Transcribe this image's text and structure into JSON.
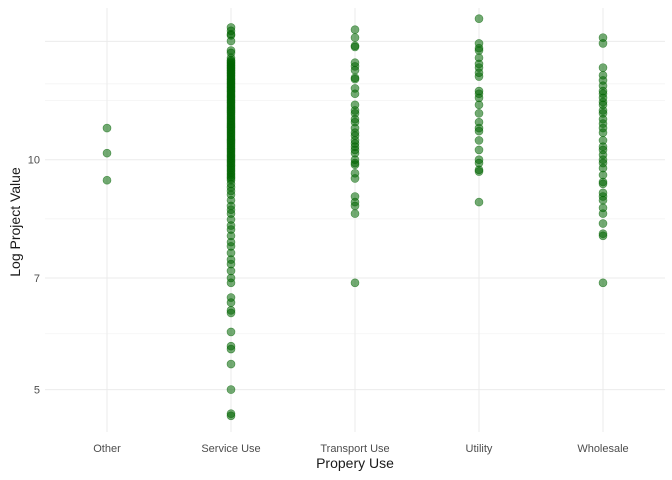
{
  "chart_data": {
    "type": "scatter",
    "title": "",
    "xlabel": "Propery Use",
    "ylabel": "Log Project Value",
    "categories": [
      "Other",
      "Service Use",
      "Transport Use",
      "Utility",
      "Wholesale"
    ],
    "yticks": [
      5,
      7,
      10
    ],
    "yticks_labels": [
      "5",
      "7",
      "10"
    ],
    "ylim": [
      4.4,
      15.8
    ],
    "grid": true,
    "point_color": "#006400",
    "point_opacity": 0.55,
    "series": [
      {
        "category": "Other",
        "values": [
          11.0,
          10.2,
          9.4
        ]
      },
      {
        "category": "Service Use",
        "values": [
          14.9,
          14.75,
          14.6,
          14.55,
          14.3,
          13.9,
          13.8,
          13.6,
          13.5,
          13.45,
          13.4,
          13.35,
          13.3,
          13.25,
          13.2,
          13.15,
          13.1,
          13.05,
          13.0,
          12.95,
          12.9,
          12.85,
          12.8,
          12.75,
          12.7,
          12.65,
          12.6,
          12.55,
          12.5,
          12.45,
          12.4,
          12.35,
          12.3,
          12.25,
          12.2,
          12.15,
          12.1,
          12.05,
          12.0,
          11.95,
          11.9,
          11.85,
          11.8,
          11.75,
          11.7,
          11.65,
          11.6,
          11.55,
          11.5,
          11.45,
          11.4,
          11.35,
          11.3,
          11.25,
          11.2,
          11.15,
          11.1,
          11.05,
          11.0,
          10.95,
          10.9,
          10.85,
          10.8,
          10.75,
          10.7,
          10.65,
          10.6,
          10.55,
          10.5,
          10.45,
          10.4,
          10.35,
          10.3,
          10.25,
          10.2,
          10.15,
          10.1,
          10.05,
          10.0,
          9.95,
          9.9,
          9.85,
          9.8,
          9.75,
          9.7,
          9.65,
          9.6,
          9.55,
          9.5,
          9.45,
          9.4,
          9.3,
          9.2,
          9.1,
          9.0,
          8.85,
          8.7,
          8.6,
          8.5,
          8.35,
          8.2,
          8.1,
          7.95,
          7.8,
          7.7,
          7.55,
          7.4,
          7.3,
          7.15,
          7.0,
          6.9,
          6.6,
          6.5,
          6.35,
          6.3,
          5.95,
          5.7,
          5.65,
          5.4,
          5.0,
          4.65,
          4.62
        ]
      },
      {
        "category": "Transport Use",
        "values": [
          14.8,
          14.45,
          14.1,
          14.05,
          13.4,
          13.25,
          13.1,
          12.8,
          12.75,
          12.4,
          12.2,
          11.8,
          11.6,
          11.5,
          11.3,
          11.2,
          11.0,
          10.85,
          10.75,
          10.6,
          10.5,
          10.4,
          10.3,
          10.2,
          10.0,
          9.9,
          9.85,
          9.6,
          9.45,
          8.95,
          8.8,
          8.7,
          8.5,
          6.9
        ]
      },
      {
        "category": "Utility",
        "values": [
          15.3,
          14.2,
          14.0,
          13.9,
          13.6,
          13.35,
          13.2,
          13.0,
          12.85,
          12.3,
          12.2,
          12.05,
          11.8,
          11.5,
          11.2,
          11.0,
          10.9,
          10.6,
          10.3,
          10.0,
          9.9,
          9.7,
          9.65,
          8.8
        ]
      },
      {
        "category": "Wholesale",
        "values": [
          14.45,
          14.2,
          13.2,
          12.9,
          12.7,
          12.5,
          12.3,
          12.2,
          12.05,
          11.9,
          11.8,
          11.6,
          11.5,
          11.3,
          11.15,
          11.0,
          10.85,
          10.6,
          10.4,
          10.3,
          10.15,
          10.0,
          9.9,
          9.75,
          9.55,
          9.35,
          9.3,
          9.05,
          8.95,
          8.85,
          8.65,
          8.5,
          8.25,
          8.0,
          7.95,
          6.9
        ]
      }
    ]
  }
}
